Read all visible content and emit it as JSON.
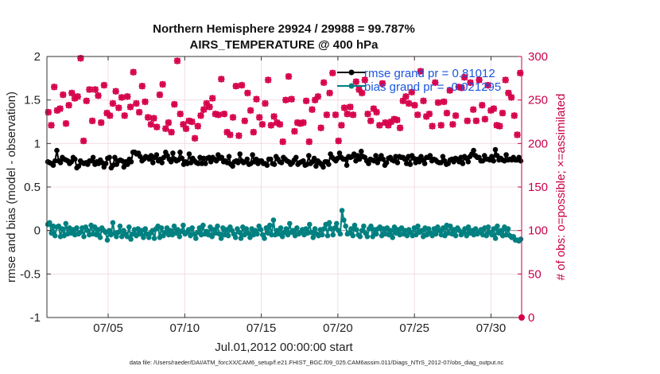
{
  "chart_data": {
    "type": "line",
    "title_line1": "Northern Hemisphere 29924 / 29988 = 99.787%",
    "title_line2": "AIRS_TEMPERATURE @ 400 hPa",
    "xlabel": "Jul.01,2012 00:00:00 start",
    "ylabel_left": "rmse and bias (model - observation)",
    "ylabel_right": "# of obs: o=possible; ×=assimilated",
    "footnote": "data file: /Users/raeder/DAI/ATM_forcXX/CAM6_setup/f.e21.FHIST_BGC.f09_025.CAM6assim.011/Diags_NTrS_2012-07/obs_diag_output.nc",
    "xlim": [
      1,
      32
    ],
    "ylim_left": [
      -1,
      2
    ],
    "ylim_right": [
      0,
      300
    ],
    "x_ticks": [
      5,
      10,
      15,
      20,
      25,
      30
    ],
    "x_tick_labels": [
      "07/05",
      "07/10",
      "07/15",
      "07/20",
      "07/25",
      "07/30"
    ],
    "y_ticks_left": [
      -1,
      -0.5,
      0,
      0.5,
      1,
      1.5,
      2
    ],
    "y_tick_labels_left": [
      "-1",
      "-0.5",
      "0",
      "0.5",
      "1",
      "1.5",
      "2"
    ],
    "y_ticks_right": [
      0,
      50,
      100,
      150,
      200,
      250,
      300
    ],
    "y_tick_labels_right": [
      "0",
      "50",
      "100",
      "150",
      "200",
      "250",
      "300"
    ],
    "series": [
      {
        "name": "rmse grand pr = 0.81012",
        "color": "#000000",
        "axis": "left",
        "marker": "circle",
        "values": [
          0.79,
          0.78,
          0.77,
          0.75,
          0.8,
          0.92,
          0.8,
          0.78,
          0.84,
          0.82,
          0.81,
          0.8,
          0.77,
          0.79,
          0.84,
          0.82,
          0.72,
          0.74,
          0.8,
          0.78,
          0.77,
          0.78,
          0.76,
          0.8,
          0.8,
          0.84,
          0.76,
          0.79,
          0.77,
          0.81,
          0.78,
          0.73,
          0.77,
          0.83,
          0.84,
          0.72,
          0.75,
          0.84,
          0.76,
          0.8,
          0.81,
          0.8,
          0.73,
          0.79,
          0.76,
          0.82,
          0.79,
          0.9,
          0.9,
          0.88,
          0.89,
          0.85,
          0.8,
          0.82,
          0.85,
          0.84,
          0.82,
          0.86,
          0.78,
          0.84,
          0.87,
          0.8,
          0.82,
          0.78,
          0.84,
          0.9,
          0.86,
          0.82,
          0.79,
          0.89,
          0.82,
          0.8,
          0.81,
          0.9,
          0.83,
          0.76,
          0.79,
          0.77,
          0.88,
          0.78,
          0.83,
          0.8,
          0.78,
          0.77,
          0.84,
          0.77,
          0.83,
          0.77,
          0.83,
          0.84,
          0.79,
          0.84,
          0.82,
          0.8,
          0.87,
          0.83,
          0.84,
          0.79,
          0.8,
          0.78,
          0.85,
          0.76,
          0.74,
          0.79,
          0.8,
          0.78,
          0.88,
          0.8,
          0.78,
          0.79,
          0.82,
          0.76,
          0.77,
          0.87,
          0.79,
          0.82,
          0.77,
          0.8,
          0.8,
          0.77,
          0.77,
          0.75,
          0.82,
          0.82,
          0.77,
          0.76,
          0.85,
          0.82,
          0.79,
          0.78,
          0.84,
          0.82,
          0.8,
          0.79,
          0.76,
          0.78,
          0.81,
          0.84,
          0.76,
          0.78,
          0.79,
          0.8,
          0.75,
          0.76,
          0.86,
          0.77,
          0.79,
          0.83,
          0.74,
          0.8,
          0.78,
          0.76,
          0.73,
          0.79,
          0.79,
          0.76,
          0.88,
          0.84,
          0.82,
          0.8,
          0.83,
          0.89,
          0.84,
          0.82,
          0.82,
          0.75,
          0.85,
          0.84,
          0.85,
          0.88,
          0.8,
          0.86,
          0.82,
          0.91,
          0.85,
          0.84,
          0.8,
          0.77,
          0.82,
          0.81,
          0.8,
          0.86,
          0.78,
          0.82,
          0.86,
          0.82,
          0.75,
          0.78,
          0.83,
          0.84,
          0.81,
          0.8,
          0.85,
          0.78,
          0.85,
          0.84,
          0.84,
          0.82,
          0.77,
          0.85,
          0.76,
          0.86,
          0.83,
          0.78,
          0.82,
          0.79,
          0.85,
          0.81,
          0.77,
          0.84,
          0.84,
          0.86,
          0.8,
          0.82,
          0.81,
          0.79,
          0.78,
          0.78,
          0.85,
          0.8,
          0.76,
          0.77,
          0.81,
          0.82,
          0.79,
          0.83,
          0.82,
          0.79,
          0.84,
          0.77,
          0.85,
          0.83,
          0.79,
          0.85,
          0.88,
          0.92,
          0.86,
          0.84,
          0.84,
          0.8,
          0.8,
          0.86,
          0.82,
          0.82,
          0.81,
          0.85,
          0.8,
          0.93,
          0.86,
          0.81,
          0.83,
          0.81,
          0.8,
          0.87,
          0.81,
          0.82,
          0.81,
          0.84,
          0.81,
          0.81,
          0.84,
          0.8
        ]
      },
      {
        "name": "bias grand pr = -0.021295",
        "color": "#008080",
        "axis": "left",
        "marker": "circle",
        "values": [
          0.07,
          0.09,
          -0.03,
          0.05,
          -0.06,
          0.04,
          0.05,
          -0.07,
          0.02,
          -0.06,
          0.08,
          -0.04,
          0.03,
          -0.03,
          0.01,
          -0.05,
          0.03,
          -0.04,
          -0.02,
          0.03,
          -0.07,
          0.04,
          0.0,
          -0.05,
          0.06,
          -0.04,
          0.04,
          -0.05,
          0.01,
          -0.08,
          0.03,
          0.0,
          -0.02,
          -0.11,
          0.0,
          -0.05,
          0.09,
          -0.03,
          -0.07,
          -0.02,
          0.05,
          -0.07,
          0.0,
          -0.04,
          -0.07,
          0.04,
          -0.1,
          -0.04,
          0.01,
          -0.06,
          0.02,
          -0.04,
          0.0,
          -0.08,
          0.02,
          -0.04,
          -0.08,
          -0.03,
          0.0,
          -0.09,
          0.02,
          0.05,
          -0.08,
          0.03,
          -0.06,
          -0.02,
          0.03,
          -0.05,
          0.0,
          -0.05,
          0.05,
          -0.03,
          0.01,
          -0.07,
          -0.01,
          0.06,
          -0.04,
          -0.02,
          0.01,
          -0.06,
          0.03,
          -0.04,
          -0.09,
          -0.02,
          0.03,
          -0.05,
          0.06,
          -0.04,
          -0.01,
          -0.05,
          0.04,
          -0.07,
          0.01,
          -0.03,
          0.05,
          -0.04,
          -0.09,
          0.03,
          -0.05,
          0.01,
          -0.06,
          0.04,
          0.0,
          -0.04,
          -0.08,
          0.02,
          -0.02,
          -0.09,
          0.04,
          -0.05,
          0.02,
          -0.03,
          -0.08,
          0.02,
          -0.05,
          0.0,
          -0.04,
          0.05,
          0.01,
          -0.05,
          -0.09,
          0.03,
          -0.03,
          0.06,
          -0.05,
          0.12,
          -0.05,
          0.0,
          -0.04,
          0.03,
          -0.07,
          -0.02,
          0.02,
          -0.05,
          0.08,
          -0.02,
          0.0,
          -0.06,
          0.03,
          -0.04,
          -0.02,
          0.01,
          -0.05,
          0.02,
          -0.03,
          0.07,
          -0.02,
          -0.08,
          0.02,
          -0.04,
          -0.06,
          0.01,
          -0.05,
          0.02,
          0.07,
          -0.06,
          0.09,
          0.02,
          -0.05,
          0.03,
          0.08,
          0.0,
          -0.04,
          0.23,
          0.12,
          0.05,
          -0.04,
          -0.03,
          0.02,
          -0.06,
          0.06,
          0.01,
          -0.05,
          -0.07,
          0.0,
          0.05,
          -0.03,
          -0.07,
          0.02,
          0.05,
          -0.07,
          0.01,
          -0.04,
          0.02,
          0.04,
          -0.06,
          0.02,
          -0.04,
          0.03,
          -0.05,
          0.0,
          -0.08,
          0.04,
          -0.03,
          0.01,
          -0.05,
          0.03,
          -0.04,
          0.0,
          -0.06,
          0.01,
          -0.02,
          -0.06,
          0.03,
          -0.05,
          0.05,
          -0.02,
          0.0,
          -0.07,
          0.03,
          -0.05,
          0.02,
          -0.03,
          -0.06,
          0.02,
          -0.04,
          0.04,
          0.0,
          -0.05,
          0.03,
          -0.06,
          0.06,
          -0.03,
          0.05,
          -0.04,
          0.01,
          -0.06,
          0.03,
          0.0,
          -0.05,
          -0.02,
          0.02,
          -0.06,
          0.04,
          -0.03,
          0.0,
          -0.05,
          0.02,
          -0.04,
          -0.02,
          0.01,
          -0.05,
          0.03,
          -0.06,
          0.04,
          -0.02,
          -0.05,
          0.02,
          -0.09,
          0.05,
          -0.03,
          0.0,
          -0.06,
          0.04,
          -0.05,
          0.02,
          -0.06,
          -0.08,
          -0.07,
          -0.11,
          -0.11,
          -0.12,
          -0.1
        ]
      },
      {
        "name": "obs possible",
        "color": "#d6004b",
        "axis": "right",
        "marker": "circle",
        "values": [
          236,
          221,
          265,
          238,
          240,
          256,
          223,
          244,
          258,
          252,
          254,
          298,
          203,
          249,
          262,
          226,
          262,
          255,
          224,
          267,
          235,
          232,
          246,
          260,
          241,
          253,
          232,
          254,
          242,
          282,
          246,
          236,
          266,
          248,
          230,
          222,
          229,
          219,
          256,
          268,
          217,
          224,
          213,
          245,
          295,
          234,
          222,
          217,
          226,
          225,
          206,
          220,
          232,
          239,
          246,
          242,
          252,
          234,
          233,
          274,
          234,
          213,
          210,
          230,
          266,
          209,
          267,
          226,
          258,
          238,
          213,
          251,
          230,
          222,
          246,
          273,
          221,
          231,
          224,
          222,
          202,
          250,
          277,
          251,
          214,
          224,
          223,
          224,
          249,
          202,
          239,
          250,
          254,
          218,
          270,
          233,
          258,
          281,
          233,
          203,
          221,
          241,
          234,
          242,
          233,
          271,
          262,
          258,
          273,
          234,
          226,
          240,
          236,
          221,
          269,
          224,
          221,
          225,
          228,
          227,
          218,
          249,
          254,
          246,
          259,
          244,
          233,
          283,
          249,
          231,
          234,
          220,
          270,
          247,
          221,
          248,
          235,
          261,
          222,
          232,
          265,
          264,
          276,
          226,
          270,
          239,
          226,
          273,
          244,
          228,
          267,
          238,
          240,
          221,
          220,
          235,
          273,
          258,
          253,
          232,
          210,
          281
        ]
      },
      {
        "name": "obs assimilated",
        "color": "#d6004b",
        "axis": "right",
        "marker": "cross",
        "values": [
          236,
          221,
          265,
          238,
          240,
          256,
          223,
          244,
          258,
          252,
          254,
          298,
          203,
          249,
          262,
          226,
          262,
          255,
          224,
          267,
          235,
          232,
          246,
          260,
          241,
          253,
          232,
          254,
          242,
          282,
          246,
          236,
          266,
          248,
          230,
          222,
          229,
          219,
          256,
          268,
          217,
          224,
          213,
          245,
          295,
          234,
          222,
          217,
          226,
          225,
          206,
          220,
          232,
          239,
          246,
          242,
          252,
          234,
          233,
          274,
          234,
          213,
          210,
          230,
          266,
          209,
          267,
          226,
          258,
          238,
          213,
          251,
          230,
          222,
          246,
          273,
          221,
          231,
          224,
          222,
          202,
          250,
          277,
          251,
          214,
          224,
          223,
          224,
          249,
          202,
          239,
          250,
          254,
          218,
          270,
          233,
          258,
          281,
          233,
          203,
          221,
          241,
          234,
          242,
          233,
          271,
          262,
          258,
          273,
          234,
          226,
          240,
          236,
          221,
          269,
          224,
          221,
          225,
          228,
          227,
          218,
          249,
          254,
          246,
          259,
          244,
          233,
          283,
          249,
          231,
          234,
          220,
          270,
          247,
          221,
          248,
          235,
          261,
          222,
          232,
          265,
          264,
          276,
          226,
          270,
          239,
          226,
          273,
          244,
          228,
          267,
          238,
          240,
          221,
          220,
          235,
          273,
          258,
          253,
          232,
          210,
          281
        ]
      }
    ],
    "legend": {
      "position": "top-right",
      "entries": [
        "rmse grand pr = 0.81012",
        "bias grand pr = -0.021295"
      ]
    },
    "endpoint_marker": {
      "axis": "right",
      "x": 32,
      "value": 0
    }
  }
}
